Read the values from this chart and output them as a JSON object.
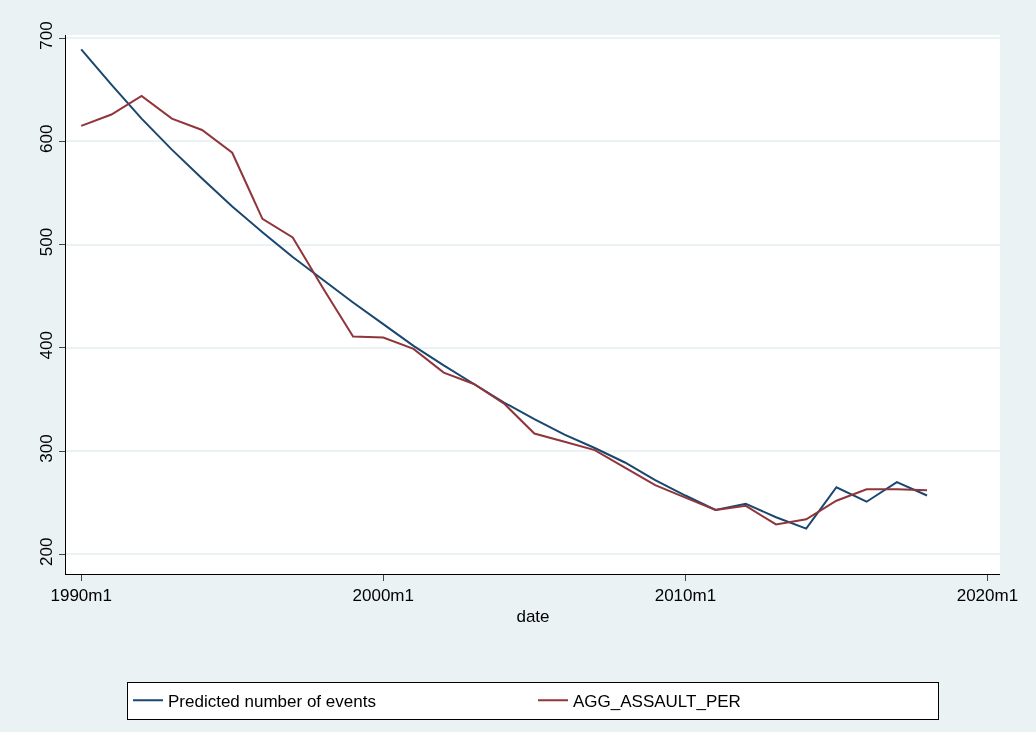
{
  "chart_data": {
    "type": "line",
    "xlabel": "date",
    "x": [
      "1990",
      "1991",
      "1992",
      "1993",
      "1994",
      "1995",
      "1996",
      "1997",
      "1998",
      "1999",
      "2000",
      "2001",
      "2002",
      "2003",
      "2004",
      "2005",
      "2006",
      "2007",
      "2008",
      "2009",
      "2010",
      "2011",
      "2012",
      "2013",
      "2014",
      "2015",
      "2016",
      "2017",
      "2018"
    ],
    "series": [
      {
        "name": "Predicted number of events",
        "color": "#1a476f",
        "values": [
          689,
          655,
          622,
          592,
          564,
          537,
          512,
          488,
          466,
          444,
          423,
          402,
          383,
          365,
          347,
          331,
          316,
          303,
          289,
          272,
          257,
          243,
          249,
          236,
          225,
          265,
          251,
          270,
          257
        ]
      },
      {
        "name": "AGG_ASSAULT_PER",
        "color": "#90353b",
        "values": [
          615,
          626,
          644,
          622,
          611,
          589,
          525,
          507,
          458,
          411,
          410,
          399,
          376,
          365,
          346,
          317,
          309,
          301,
          284,
          267,
          255,
          243,
          247,
          229,
          234,
          252,
          263,
          263,
          262
        ]
      }
    ],
    "xlim": [
      "1989-07",
      "2020-06"
    ],
    "xticks": [
      {
        "value": "1990-01",
        "label": "1990m1"
      },
      {
        "value": "2000-01",
        "label": "2000m1"
      },
      {
        "value": "2010-01",
        "label": "2010m1"
      },
      {
        "value": "2020-01",
        "label": "2020m1"
      }
    ],
    "ylim": [
      181,
      703
    ],
    "yticks": [
      200,
      300,
      400,
      500,
      600,
      700
    ],
    "grid": "y",
    "legend": "bottom",
    "marker": "none",
    "line_style": "solid"
  }
}
